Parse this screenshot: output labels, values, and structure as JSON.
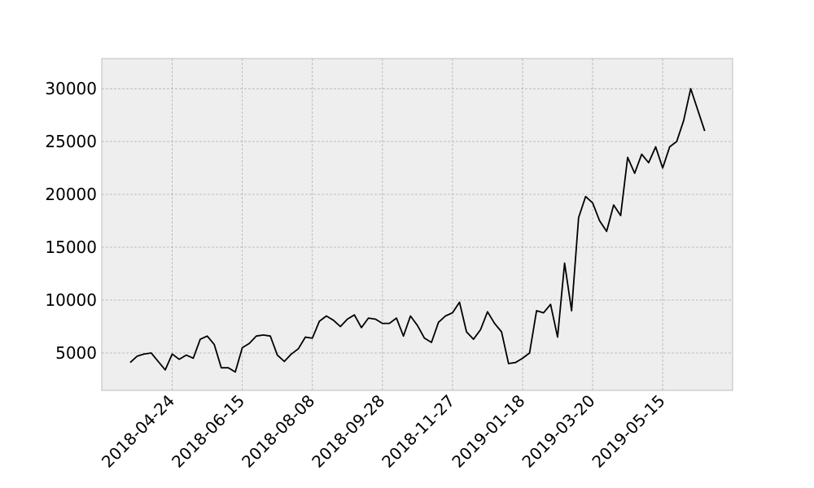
{
  "chart_data": {
    "type": "line",
    "categories": [
      null,
      null,
      null,
      null,
      null,
      null,
      "2018-04-24",
      null,
      null,
      null,
      null,
      null,
      null,
      null,
      null,
      null,
      "2018-06-15",
      null,
      null,
      null,
      null,
      null,
      null,
      null,
      null,
      null,
      "2018-08-08",
      null,
      null,
      null,
      null,
      null,
      null,
      null,
      null,
      null,
      "2018-09-28",
      null,
      null,
      null,
      null,
      null,
      null,
      null,
      null,
      null,
      "2018-11-27",
      null,
      null,
      null,
      null,
      null,
      null,
      null,
      null,
      null,
      "2019-01-18",
      null,
      null,
      null,
      null,
      null,
      null,
      null,
      null,
      null,
      "2019-03-20",
      null,
      null,
      null,
      null,
      null,
      null,
      null,
      null,
      null,
      "2019-05-15",
      null,
      null,
      null,
      null,
      null,
      null
    ],
    "series": [
      {
        "color": "#000000",
        "values": [
          4100,
          4700,
          4900,
          5000,
          4200,
          3400,
          4900,
          4400,
          4800,
          4500,
          6300,
          6600,
          5800,
          3600,
          3600,
          3200,
          5500,
          5900,
          6600,
          6700,
          6600,
          4800,
          4200,
          4900,
          5400,
          6500,
          6400,
          8000,
          8500,
          8100,
          7500,
          8200,
          8600,
          7400,
          8300,
          8200,
          7800,
          7800,
          8300,
          6600,
          8500,
          7600,
          6400,
          6000,
          7900,
          8500,
          8800,
          9800,
          7000,
          6300,
          7200,
          8900,
          7800,
          7000,
          4000,
          4100,
          4500,
          5000,
          9000,
          8800,
          9600,
          6500,
          13500,
          9000,
          17800,
          19800,
          19200,
          17500,
          16500,
          19000,
          18000,
          23500,
          22000,
          23800,
          23000,
          24500,
          22500,
          24500,
          25000,
          27000,
          30000,
          28000,
          26000
        ]
      }
    ],
    "ylim": [
      1460,
      32850
    ],
    "yticks": [
      5000,
      10000,
      15000,
      20000,
      25000,
      30000
    ],
    "grid": true
  }
}
